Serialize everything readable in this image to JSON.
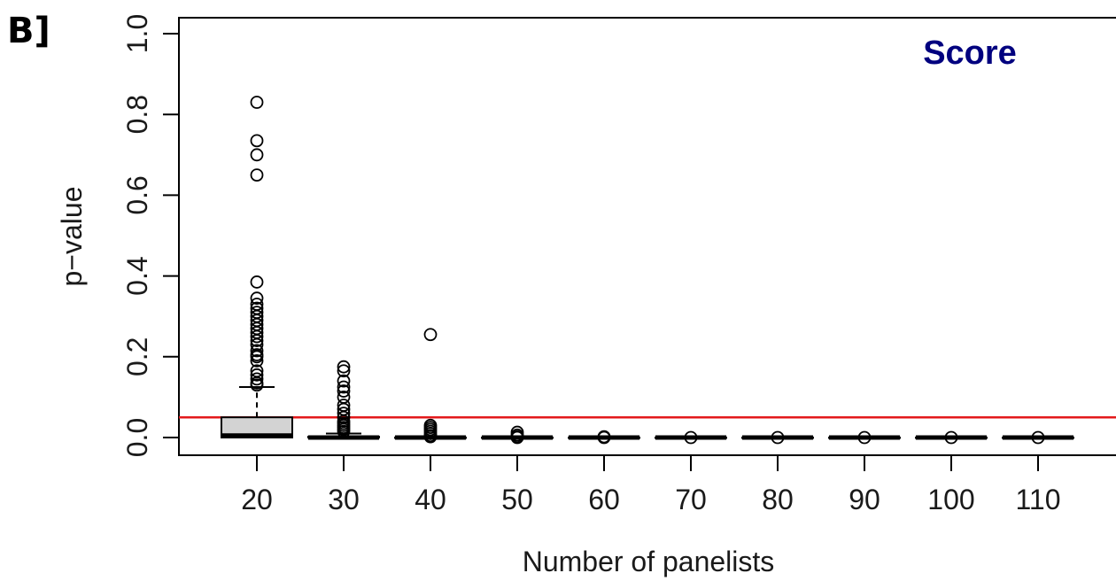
{
  "panel_label": "B]",
  "annotation": {
    "text": "Score",
    "color": "#00007f"
  },
  "colors": {
    "reference_line": "#e31a1c",
    "box_fill": "#d3d3d3",
    "stroke": "#000000"
  },
  "chart_data": {
    "type": "boxplot",
    "title": "",
    "xlabel": "Number of panelists",
    "ylabel": "p−value",
    "ylim": [
      0.0,
      1.0
    ],
    "yticks": [
      "0.0",
      "0.2",
      "0.4",
      "0.6",
      "0.8",
      "1.0"
    ],
    "categories": [
      "20",
      "30",
      "40",
      "50",
      "60",
      "70",
      "80",
      "90",
      "100",
      "110"
    ],
    "reference_line": {
      "y": 0.05
    },
    "grid": false,
    "legend": "none",
    "boxes": [
      {
        "q1": 0.0,
        "median": 0.005,
        "q3": 0.05,
        "whisker_low": 0.0,
        "whisker_high": 0.125,
        "outliers": [
          0.83,
          0.735,
          0.7,
          0.65,
          0.385,
          0.345,
          0.33,
          0.32,
          0.31,
          0.3,
          0.29,
          0.28,
          0.27,
          0.26,
          0.25,
          0.24,
          0.23,
          0.215,
          0.205,
          0.2,
          0.19,
          0.165,
          0.155,
          0.145,
          0.135,
          0.13
        ]
      },
      {
        "q1": 0.0,
        "median": 0.0,
        "q3": 0.002,
        "whisker_low": 0.0,
        "whisker_high": 0.01,
        "outliers": [
          0.175,
          0.165,
          0.14,
          0.125,
          0.115,
          0.1,
          0.08,
          0.07,
          0.06,
          0.05,
          0.04,
          0.035,
          0.03,
          0.025,
          0.02,
          0.015
        ]
      },
      {
        "q1": 0.0,
        "median": 0.0,
        "q3": 0.0,
        "whisker_low": 0.0,
        "whisker_high": 0.0,
        "outliers": [
          0.255,
          0.03,
          0.025,
          0.02,
          0.015,
          0.01,
          0.005,
          0.002
        ]
      },
      {
        "q1": 0.0,
        "median": 0.0,
        "q3": 0.0,
        "whisker_low": 0.0,
        "whisker_high": 0.0,
        "outliers": [
          0.013,
          0.006,
          0.002,
          0.0
        ]
      },
      {
        "q1": 0.0,
        "median": 0.0,
        "q3": 0.0,
        "whisker_low": 0.0,
        "whisker_high": 0.0,
        "outliers": [
          0.002,
          0.0
        ]
      },
      {
        "q1": 0.0,
        "median": 0.0,
        "q3": 0.0,
        "whisker_low": 0.0,
        "whisker_high": 0.0,
        "outliers": [
          0.0
        ]
      },
      {
        "q1": 0.0,
        "median": 0.0,
        "q3": 0.0,
        "whisker_low": 0.0,
        "whisker_high": 0.0,
        "outliers": [
          0.0
        ]
      },
      {
        "q1": 0.0,
        "median": 0.0,
        "q3": 0.0,
        "whisker_low": 0.0,
        "whisker_high": 0.0,
        "outliers": [
          0.0
        ]
      },
      {
        "q1": 0.0,
        "median": 0.0,
        "q3": 0.0,
        "whisker_low": 0.0,
        "whisker_high": 0.0,
        "outliers": [
          0.0
        ]
      },
      {
        "q1": 0.0,
        "median": 0.0,
        "q3": 0.0,
        "whisker_low": 0.0,
        "whisker_high": 0.0,
        "outliers": [
          0.0
        ]
      }
    ]
  }
}
